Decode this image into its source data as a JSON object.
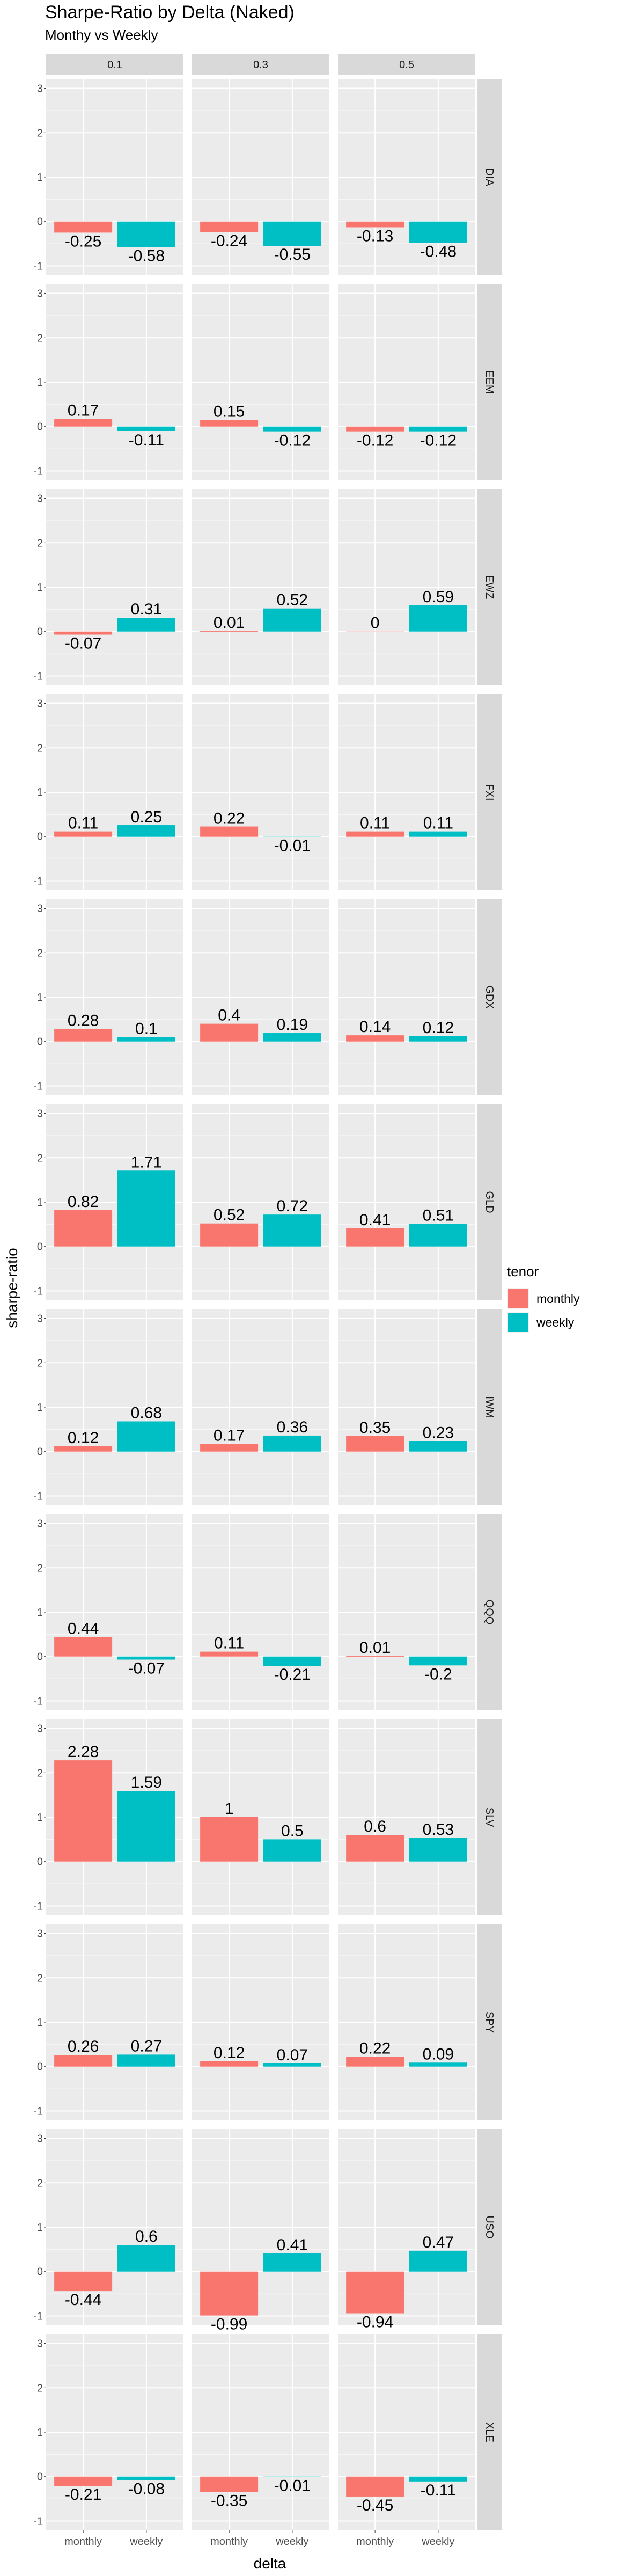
{
  "chart_data": {
    "type": "bar",
    "title": "Sharpe-Ratio by Delta (Naked)",
    "subtitle": "Monthy vs Weekly",
    "xlabel": "delta",
    "ylabel": "sharpe-ratio",
    "ylim": [
      -1.2,
      3.2
    ],
    "yticks": [
      -1,
      0,
      1,
      2,
      3
    ],
    "categories": [
      "monthly",
      "weekly"
    ],
    "facet_columns": [
      "0.1",
      "0.3",
      "0.5"
    ],
    "facet_rows": [
      "DIA",
      "EEM",
      "EWZ",
      "FXI",
      "GDX",
      "GLD",
      "IWM",
      "QQQ",
      "SLV",
      "SPY",
      "USO",
      "XLE"
    ],
    "legend": {
      "title": "tenor",
      "position": "right",
      "entries": [
        {
          "label": "monthly",
          "color": "#F8766D"
        },
        {
          "label": "weekly",
          "color": "#00BFC4"
        }
      ]
    },
    "grid": true,
    "values": {
      "DIA": {
        "0.1": [
          -0.25,
          -0.58
        ],
        "0.3": [
          -0.24,
          -0.55
        ],
        "0.5": [
          -0.13,
          -0.48
        ]
      },
      "EEM": {
        "0.1": [
          0.17,
          -0.11
        ],
        "0.3": [
          0.15,
          -0.12
        ],
        "0.5": [
          -0.12,
          -0.12
        ]
      },
      "EWZ": {
        "0.1": [
          -0.07,
          0.31
        ],
        "0.3": [
          0.01,
          0.52
        ],
        "0.5": [
          0,
          0.59
        ]
      },
      "FXI": {
        "0.1": [
          0.11,
          0.25
        ],
        "0.3": [
          0.22,
          -0.01
        ],
        "0.5": [
          0.11,
          0.11
        ]
      },
      "GDX": {
        "0.1": [
          0.28,
          0.1
        ],
        "0.3": [
          0.4,
          0.19
        ],
        "0.5": [
          0.14,
          0.12
        ]
      },
      "GLD": {
        "0.1": [
          0.82,
          1.71
        ],
        "0.3": [
          0.52,
          0.72
        ],
        "0.5": [
          0.41,
          0.51
        ]
      },
      "IWM": {
        "0.1": [
          0.12,
          0.68
        ],
        "0.3": [
          0.17,
          0.36
        ],
        "0.5": [
          0.35,
          0.23
        ]
      },
      "QQQ": {
        "0.1": [
          0.44,
          -0.07
        ],
        "0.3": [
          0.11,
          -0.21
        ],
        "0.5": [
          0.01,
          -0.2
        ]
      },
      "SLV": {
        "0.1": [
          2.28,
          1.59
        ],
        "0.3": [
          1,
          0.5
        ],
        "0.5": [
          0.6,
          0.53
        ]
      },
      "SPY": {
        "0.1": [
          0.26,
          0.27
        ],
        "0.3": [
          0.12,
          0.07
        ],
        "0.5": [
          0.22,
          0.09
        ]
      },
      "USO": {
        "0.1": [
          -0.44,
          0.6
        ],
        "0.3": [
          -0.99,
          0.41
        ],
        "0.5": [
          -0.94,
          0.47
        ]
      },
      "XLE": {
        "0.1": [
          -0.21,
          -0.08
        ],
        "0.3": [
          -0.35,
          -0.01
        ],
        "0.5": [
          -0.45,
          -0.11
        ]
      }
    }
  }
}
